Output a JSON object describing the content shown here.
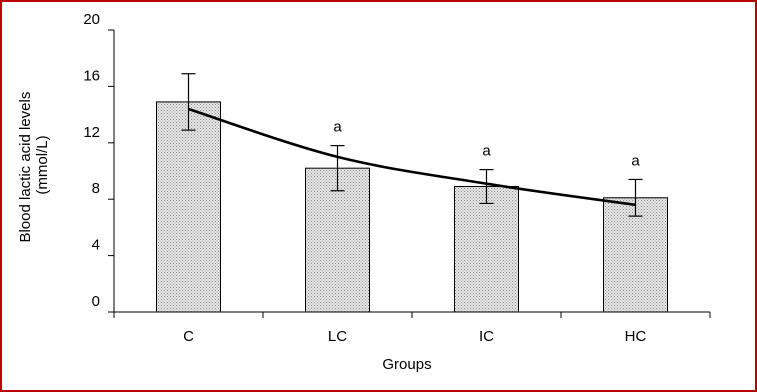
{
  "chart_data": {
    "type": "bar",
    "categories": [
      "C",
      "LC",
      "IC",
      "HC"
    ],
    "series": [
      {
        "values": [
          14.9,
          10.2,
          8.9,
          8.1
        ],
        "error": [
          2.0,
          1.6,
          1.2,
          1.3
        ],
        "significance": [
          "",
          "a",
          "a",
          "a"
        ]
      }
    ],
    "trendline": {
      "type": "curve",
      "points": [
        [
          0,
          14.4
        ],
        [
          1,
          11.0
        ],
        [
          2,
          9.1
        ],
        [
          3,
          7.6
        ]
      ]
    },
    "xlabel": "Groups",
    "ylabel_lines": [
      "Blood lactic acid levels",
      "(mmol/L)"
    ],
    "ylim": [
      0,
      20
    ],
    "yticks": [
      0,
      4,
      8,
      12,
      16,
      20
    ],
    "grid": false,
    "legend": "none",
    "colors": {
      "bar_fill": "#dcdcdc",
      "bar_pattern": "#8c8c8c",
      "frame_border": "#c00000",
      "line": "#000000"
    }
  }
}
